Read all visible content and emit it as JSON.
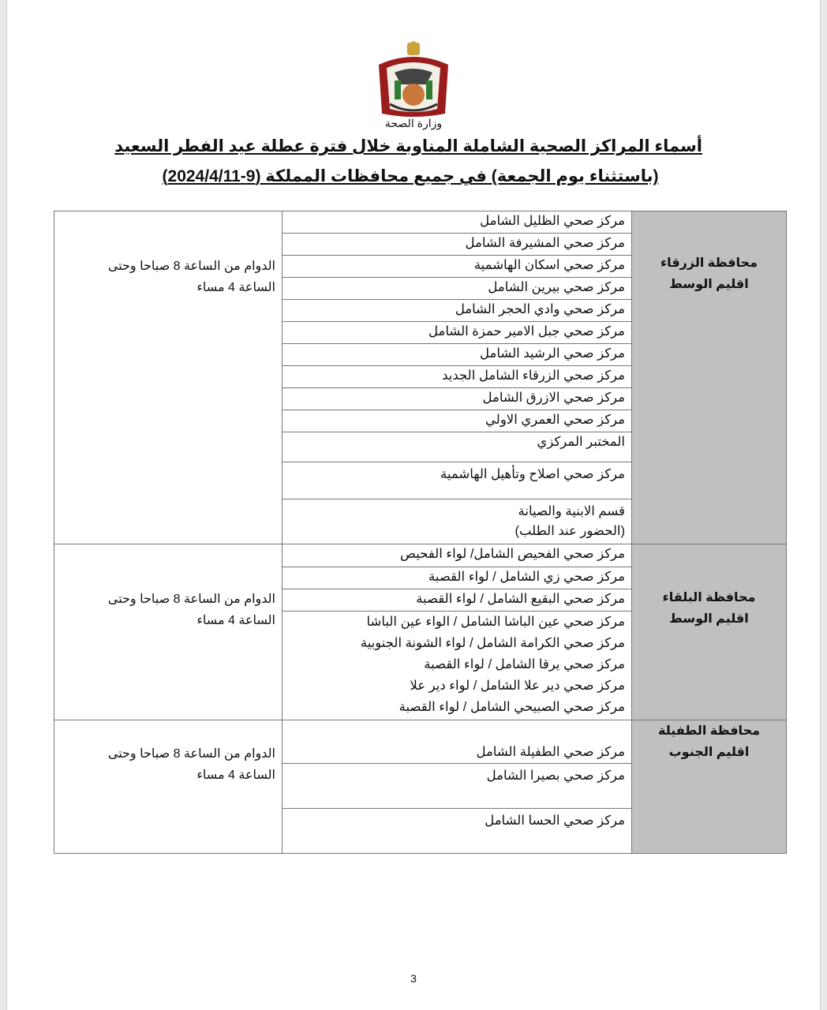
{
  "header": {
    "ministry": "وزارة الصحة",
    "title_line1": "أسماء المراكز الصحية الشاملة المناوبة خلال فترة عطلة عيد الفطر السعيد",
    "title_line2": "(باستثناء يوم الجمعة) في جميع محافظات المملكة (9-2024/4/11)"
  },
  "sections": [
    {
      "governorate": "محافظة الزرقاء",
      "region": "اقليم الوسط",
      "hours_line1": "الدوام من الساعة 8 صباحا وحتى",
      "hours_line2": "الساعة 4 مساء",
      "centers": [
        "مركز صحي الظليل الشامل",
        "مركز صحي المشيرفة الشامل",
        "مركز صحي اسكان الهاشمية",
        "مركز صحي بيرين الشامل",
        "مركز صحي وادي الحجر الشامل",
        "مركز صحي جبل الامير حمزة الشامل",
        "مركز صحي الرشيد الشامل",
        "مركز صحي الزرقاء الشامل الجديد",
        "مركز صحي الازرق الشامل",
        "مركز صحي العمري الاولي",
        "المختبر المركزي",
        "مركز صحي اصلاح وتأهيل الهاشمية",
        "قسم الابنية والصيانة",
        "(الحضور عند الطلب)"
      ]
    },
    {
      "governorate": "محافظة البلقاء",
      "region": "اقليم الوسط",
      "hours_line1": "الدوام من الساعة 8 صباحا وحتى",
      "hours_line2": "الساعة 4 مساء",
      "centers": [
        "مركز صحي الفحيص الشامل/ لواء الفحيص",
        "مركز صحي زي الشامل / لواء القصبة",
        "مركز صحي البقيع الشامل / لواء القصبة",
        "مركز صحي عين الباشا الشامل / الواء عين الباشا",
        "مركز صحي الكرامة الشامل / لواء الشونة الجنوبية",
        "مركز صحي يرقا الشامل / لواء القصبة",
        "مركز صحي دير علا الشامل / لواء دير علا",
        "مركز صحي الصبيحي الشامل / لواء القصبة"
      ]
    },
    {
      "governorate": "محافظة الطفيلة",
      "region": "اقليم الجنوب",
      "hours_line1": "الدوام من الساعة 8 صباحا وحتى",
      "hours_line2": "الساعة 4 مساء",
      "centers": [
        "مركز صحي الطفيلة الشامل",
        "مركز صحي بصيرا الشامل",
        "مركز صحي الحسا الشامل"
      ]
    }
  ],
  "page_number": "3",
  "colors": {
    "region_bg": "#c0c0c0",
    "border": "#777777"
  }
}
